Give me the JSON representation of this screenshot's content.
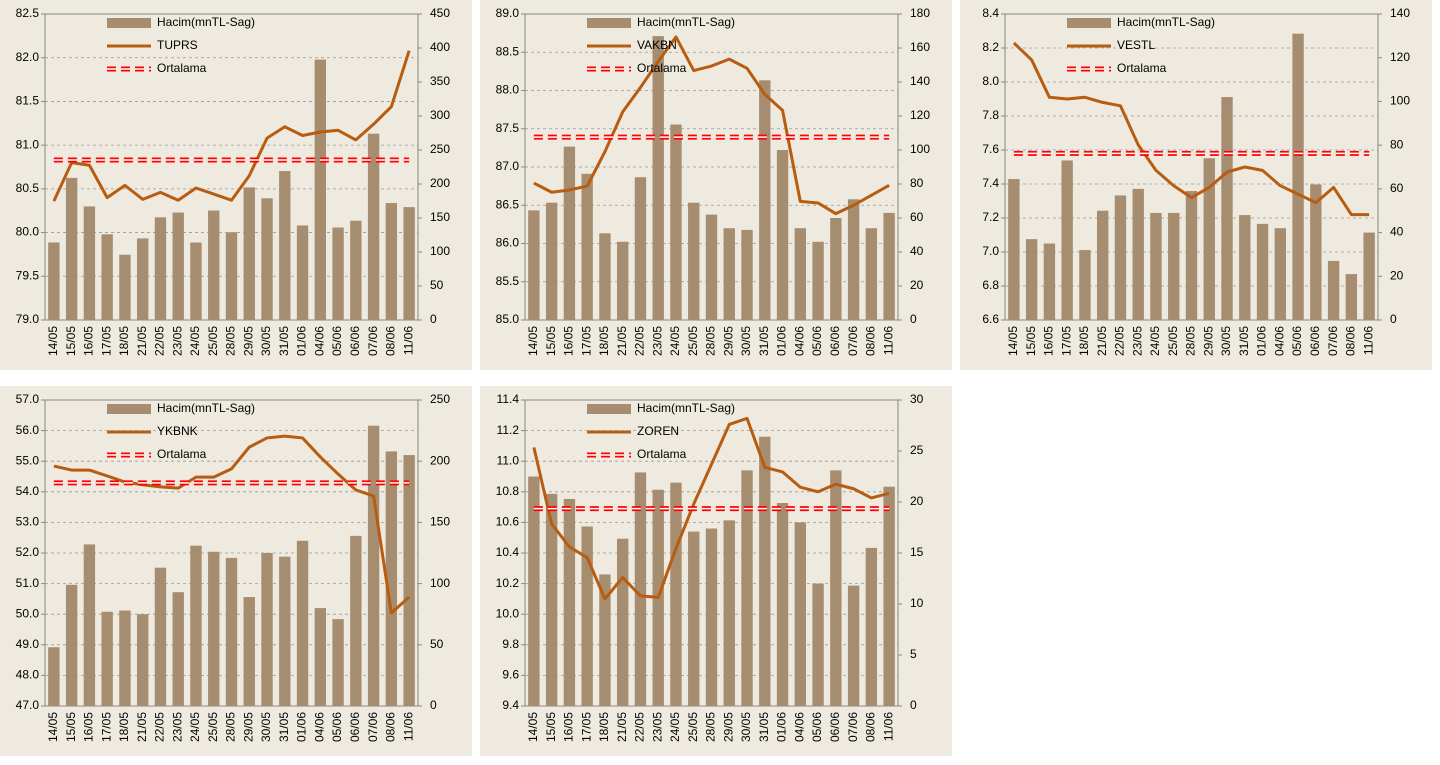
{
  "chart_data": [
    {
      "type": "bar-line",
      "categories": [
        "14/05",
        "15/05",
        "16/05",
        "17/05",
        "18/05",
        "21/05",
        "22/05",
        "23/05",
        "24/05",
        "25/05",
        "28/05",
        "29/05",
        "30/05",
        "31/05",
        "01/06",
        "04/06",
        "05/06",
        "06/06",
        "07/06",
        "08/06",
        "11/06"
      ],
      "ylim": [
        79,
        82.5
      ],
      "yticks": [
        {
          "value": 79,
          "label": "79.0"
        },
        79.5,
        {
          "value": 80,
          "label": "80.0"
        },
        80.5,
        {
          "value": 81,
          "label": "81.0"
        },
        81.5,
        {
          "value": 82,
          "label": "82.0"
        },
        82.5
      ],
      "y2lim": [
        0,
        450
      ],
      "y2ticks": [
        0,
        50,
        100,
        150,
        200,
        250,
        300,
        350,
        400,
        450
      ],
      "grid": true,
      "series": [
        {
          "name": "Hacim(mnTL-Sag)",
          "type": "bar",
          "axis": "y2",
          "color": "#a78d70",
          "values": [
            114,
            209,
            167,
            126,
            96,
            120,
            151,
            158,
            114,
            161,
            129,
            195,
            179,
            219,
            139,
            383,
            136,
            146,
            274,
            172,
            166
          ]
        },
        {
          "name": "TUPRS",
          "type": "line",
          "color": "#b85c10",
          "values": [
            80.36,
            80.8,
            80.77,
            80.4,
            80.54,
            80.38,
            80.46,
            80.37,
            80.51,
            80.44,
            80.37,
            80.65,
            81.08,
            81.21,
            81.11,
            81.15,
            81.17,
            81.06,
            81.24,
            81.44,
            82.08
          ]
        },
        {
          "name": "Ortalama",
          "type": "mean",
          "color": "#ff0000",
          "value": 80.83
        }
      ]
    },
    {
      "type": "bar-line",
      "categories": [
        "14/05",
        "15/05",
        "16/05",
        "17/05",
        "18/05",
        "21/05",
        "22/05",
        "23/05",
        "24/05",
        "25/05",
        "28/05",
        "29/05",
        "30/05",
        "31/05",
        "01/06",
        "04/06",
        "05/06",
        "06/06",
        "07/06",
        "08/06",
        "11/06"
      ],
      "ylim": [
        85,
        89
      ],
      "yticks": [
        {
          "value": 85,
          "label": "85.0"
        },
        85.5,
        {
          "value": 86,
          "label": "86.0"
        },
        86.5,
        {
          "value": 87,
          "label": "87.0"
        },
        87.5,
        {
          "value": 88,
          "label": "88.0"
        },
        88.5,
        {
          "value": 89,
          "label": "89.0"
        }
      ],
      "y2lim": [
        0,
        180
      ],
      "y2ticks": [
        0,
        20,
        40,
        60,
        80,
        100,
        120,
        140,
        160,
        180
      ],
      "grid": true,
      "series": [
        {
          "name": "Hacim(mnTL-Sag)",
          "type": "bar",
          "axis": "y2",
          "color": "#a78d70",
          "values": [
            64.5,
            69,
            102,
            86,
            51,
            46,
            84,
            167,
            115,
            69,
            62,
            54,
            53,
            141,
            100,
            54,
            46,
            60,
            71,
            54,
            63
          ]
        },
        {
          "name": "VAKBN",
          "type": "line",
          "color": "#b85c10",
          "values": [
            86.79,
            86.67,
            86.7,
            86.75,
            87.2,
            87.72,
            88.04,
            88.38,
            88.7,
            88.26,
            88.32,
            88.41,
            88.29,
            87.95,
            87.74,
            86.55,
            86.53,
            86.39,
            86.5,
            86.63,
            86.76
          ]
        },
        {
          "name": "Ortalama",
          "type": "mean",
          "color": "#ff0000",
          "value": 87.39
        }
      ]
    },
    {
      "type": "bar-line",
      "categories": [
        "14/05",
        "15/05",
        "16/05",
        "17/05",
        "18/05",
        "21/05",
        "22/05",
        "23/05",
        "24/05",
        "25/05",
        "28/05",
        "29/05",
        "30/05",
        "31/05",
        "01/06",
        "04/06",
        "05/06",
        "06/06",
        "07/06",
        "08/06",
        "11/06"
      ],
      "ylim": [
        6.6,
        8.4
      ],
      "yticks": [
        6.6,
        6.8,
        {
          "value": 7,
          "label": "7.0"
        },
        7.2,
        7.4,
        7.6,
        7.8,
        {
          "value": 8,
          "label": "8.0"
        },
        8.2,
        8.4
      ],
      "y2lim": [
        0,
        140
      ],
      "y2ticks": [
        0,
        20,
        40,
        60,
        80,
        100,
        120,
        140
      ],
      "grid": true,
      "series": [
        {
          "name": "Hacim(mnTL-Sag)",
          "type": "bar",
          "axis": "y2",
          "color": "#a78d70",
          "values": [
            64.5,
            37,
            35,
            73,
            32,
            50,
            57,
            60,
            49,
            49,
            59,
            74,
            102,
            48,
            44,
            42,
            131,
            62,
            27,
            21,
            40
          ]
        },
        {
          "name": "VESTL",
          "type": "line",
          "color": "#b85c10",
          "values": [
            8.23,
            8.13,
            7.91,
            7.9,
            7.91,
            7.88,
            7.86,
            7.63,
            7.48,
            7.39,
            7.32,
            7.38,
            7.47,
            7.5,
            7.48,
            7.39,
            7.34,
            7.29,
            7.38,
            7.22,
            7.22
          ]
        },
        {
          "name": "Ortalama",
          "type": "mean",
          "color": "#ff0000",
          "value": 7.58
        }
      ]
    },
    {
      "type": "bar-line",
      "categories": [
        "14/05",
        "15/05",
        "16/05",
        "17/05",
        "18/05",
        "21/05",
        "22/05",
        "23/05",
        "24/05",
        "25/05",
        "28/05",
        "29/05",
        "30/05",
        "31/05",
        "01/06",
        "04/06",
        "05/06",
        "06/06",
        "07/06",
        "08/06",
        "11/06"
      ],
      "ylim": [
        47,
        57
      ],
      "yticks": [
        {
          "value": 47,
          "label": "47.0"
        },
        {
          "value": 48,
          "label": "48.0"
        },
        {
          "value": 49,
          "label": "49.0"
        },
        {
          "value": 50,
          "label": "50.0"
        },
        {
          "value": 51,
          "label": "51.0"
        },
        {
          "value": 52,
          "label": "52.0"
        },
        {
          "value": 53,
          "label": "53.0"
        },
        {
          "value": 54,
          "label": "54.0"
        },
        {
          "value": 55,
          "label": "55.0"
        },
        {
          "value": 56,
          "label": "56.0"
        },
        {
          "value": 57,
          "label": "57.0"
        }
      ],
      "y2lim": [
        0,
        250
      ],
      "y2ticks": [
        0,
        50,
        100,
        150,
        200,
        250
      ],
      "grid": true,
      "series": [
        {
          "name": "Hacim(mnTL-Sag)",
          "type": "bar",
          "axis": "y2",
          "color": "#a78d70",
          "values": [
            48,
            99,
            132,
            77,
            78,
            75,
            113,
            93,
            131,
            126,
            121,
            89,
            125,
            122,
            135,
            80,
            71,
            139,
            229,
            208,
            205
          ]
        },
        {
          "name": "YKBNK",
          "type": "line",
          "color": "#b85c10",
          "values": [
            54.84,
            54.71,
            54.71,
            54.52,
            54.32,
            54.23,
            54.16,
            54.12,
            54.48,
            54.48,
            54.75,
            55.46,
            55.76,
            55.82,
            55.76,
            55.14,
            54.58,
            54.06,
            53.86,
            50.04,
            50.56
          ]
        },
        {
          "name": "Ortalama",
          "type": "mean",
          "color": "#ff0000",
          "value": 54.29
        }
      ]
    },
    {
      "type": "bar-line",
      "categories": [
        "14/05",
        "15/05",
        "16/05",
        "17/05",
        "18/05",
        "21/05",
        "22/05",
        "23/05",
        "24/05",
        "25/05",
        "28/05",
        "29/05",
        "30/05",
        "31/05",
        "01/06",
        "04/06",
        "05/06",
        "06/06",
        "07/06",
        "08/06",
        "11/06"
      ],
      "ylim": [
        9.4,
        11.4
      ],
      "yticks": [
        9.4,
        9.6,
        9.8,
        {
          "value": 10,
          "label": "10.0"
        },
        10.2,
        10.4,
        10.6,
        10.8,
        {
          "value": 11,
          "label": "11.0"
        },
        11.2,
        11.4
      ],
      "y2lim": [
        0,
        30
      ],
      "y2ticks": [
        0,
        5,
        10,
        15,
        20,
        25,
        30
      ],
      "grid": true,
      "series": [
        {
          "name": "Hacim(mnTL-Sag)",
          "type": "bar",
          "axis": "y2",
          "color": "#a78d70",
          "values": [
            22.5,
            20.8,
            20.3,
            17.6,
            12.9,
            16.4,
            22.9,
            21.2,
            21.9,
            17.1,
            17.4,
            18.2,
            23.1,
            26.4,
            19.9,
            18,
            12,
            23.1,
            11.8,
            15.5,
            21.5
          ]
        },
        {
          "name": "ZOREN",
          "type": "line",
          "color": "#b85c10",
          "values": [
            11.09,
            10.59,
            10.44,
            10.37,
            10.1,
            10.24,
            10.12,
            10.11,
            10.43,
            10.72,
            10.98,
            11.24,
            11.28,
            10.96,
            10.93,
            10.83,
            10.8,
            10.85,
            10.82,
            10.76,
            10.79
          ]
        },
        {
          "name": "Ortalama",
          "type": "mean",
          "color": "#ff0000",
          "value": 10.69
        }
      ]
    }
  ]
}
